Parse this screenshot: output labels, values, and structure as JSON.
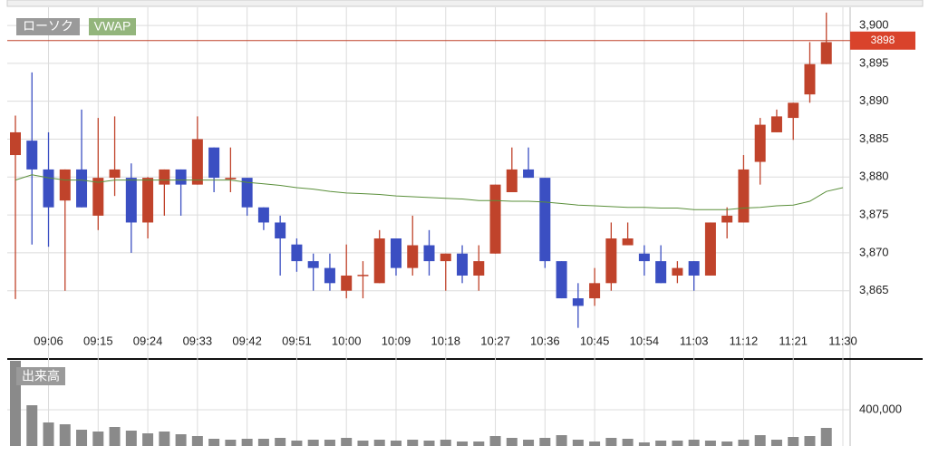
{
  "chart_data": [
    {
      "type": "candlestick",
      "legend_label": "ローソク",
      "up_color": "#c0432b",
      "down_color": "#3b4fc2",
      "categories": [
        null,
        null,
        "09:06",
        null,
        null,
        "09:15",
        null,
        null,
        "09:24",
        null,
        null,
        "09:33",
        null,
        null,
        "09:42",
        null,
        null,
        "09:51",
        null,
        null,
        "10:00",
        null,
        null,
        "10:09",
        null,
        null,
        "10:18",
        null,
        null,
        "10:27",
        null,
        null,
        "10:36",
        null,
        null,
        "10:45",
        null,
        null,
        "10:54",
        null,
        null,
        "11:03",
        null,
        null,
        "11:12",
        null,
        null,
        "11:21",
        null,
        null,
        "11:30"
      ],
      "open": [
        3882.9,
        3884.8,
        3881.0,
        3876.9,
        3881.0,
        3874.9,
        3879.9,
        3879.9,
        3874.0,
        3879.0,
        3881.0,
        3879.0,
        3883.9,
        3879.7,
        3879.9,
        3876.0,
        3874.0,
        3871.1,
        3868.9,
        3868.0,
        3865.0,
        3867.0,
        3866.0,
        3871.9,
        3868.0,
        3871.0,
        3868.9,
        3869.9,
        3867.0,
        3869.9,
        3878.0,
        3881.0,
        3879.9,
        3868.9,
        3864.0,
        3864.0,
        3866.0,
        3871.0,
        3869.9,
        3868.9,
        3867.0,
        3868.9,
        3867.0,
        3874.0,
        3874.0,
        3882.0,
        3885.9,
        3887.8,
        3890.9,
        3894.9,
        null
      ],
      "high": [
        3888.1,
        3893.8,
        3885.9,
        3881.0,
        3888.9,
        3887.8,
        3888.0,
        3881.8,
        3880.0,
        3881.0,
        3881.0,
        3888.0,
        3883.9,
        3883.9,
        3879.9,
        3876.0,
        3874.9,
        3871.9,
        3869.9,
        3869.9,
        3871.1,
        3868.9,
        3873.0,
        3871.9,
        3874.9,
        3873.0,
        3869.9,
        3871.0,
        3871.0,
        3879.0,
        3883.9,
        3883.9,
        3879.9,
        3868.9,
        3866.0,
        3868.0,
        3874.0,
        3874.0,
        3871.0,
        3871.0,
        3868.9,
        3868.9,
        3874.0,
        3876.0,
        3882.9,
        3887.8,
        3888.9,
        3889.8,
        3897.8,
        3901.7,
        null
      ],
      "low": [
        3863.9,
        3871.1,
        3870.8,
        3865.0,
        3876.0,
        3873.0,
        3877.5,
        3870.0,
        3871.9,
        3874.9,
        3874.9,
        3879.0,
        3878.0,
        3878.0,
        3874.9,
        3873.0,
        3867.0,
        3867.5,
        3865.0,
        3865.0,
        3864.0,
        3864.0,
        3866.0,
        3867.0,
        3867.0,
        3867.0,
        3865.0,
        3866.0,
        3865.0,
        3869.9,
        3878.0,
        3879.9,
        3868.0,
        3864.0,
        3860.1,
        3863.0,
        3865.0,
        3871.0,
        3867.0,
        3866.0,
        3866.0,
        3865.0,
        3867.0,
        3871.9,
        3874.0,
        3879.0,
        3885.9,
        3884.9,
        3889.8,
        3894.9,
        null
      ],
      "close": [
        3885.9,
        3881.0,
        3876.0,
        3881.0,
        3876.0,
        3879.9,
        3881.0,
        3874.0,
        3879.9,
        3881.0,
        3879.0,
        3885.0,
        3879.9,
        3879.9,
        3876.0,
        3874.0,
        3871.9,
        3868.9,
        3868.0,
        3866.0,
        3867.0,
        3867.1,
        3871.9,
        3868.0,
        3871.0,
        3868.9,
        3869.9,
        3867.0,
        3868.9,
        3879.0,
        3881.0,
        3879.9,
        3868.9,
        3864.0,
        3863.0,
        3866.0,
        3871.9,
        3871.9,
        3868.9,
        3866.0,
        3868.0,
        3867.0,
        3874.0,
        3874.9,
        3881.0,
        3886.9,
        3888.0,
        3889.8,
        3894.9,
        3897.8,
        null
      ],
      "series": [
        {
          "name": "VWAP",
          "color": "#5a8f3a",
          "values": [
            3879.6,
            3880.3,
            3879.9,
            3879.6,
            3879.6,
            3879.3,
            3879.6,
            3879.6,
            3879.6,
            3879.6,
            3879.6,
            3879.6,
            3879.6,
            3879.6,
            3879.3,
            3879.1,
            3878.9,
            3878.6,
            3878.4,
            3878.1,
            3877.9,
            3877.8,
            3877.7,
            3877.5,
            3877.4,
            3877.3,
            3877.2,
            3877.1,
            3876.9,
            3876.9,
            3876.8,
            3876.8,
            3876.7,
            3876.5,
            3876.3,
            3876.2,
            3876.1,
            3876.0,
            3876.0,
            3875.9,
            3875.9,
            3875.7,
            3875.7,
            3875.7,
            3875.9,
            3876.0,
            3876.2,
            3876.3,
            3876.8,
            3878.1,
            3878.6
          ]
        }
      ],
      "last_price": 3898,
      "last_price_color": "#d9432b",
      "ylim": [
        3859.7,
        3902.4
      ],
      "yticks": [
        {
          "value": 3900,
          "label": "3,900"
        },
        {
          "value": 3895,
          "label": "3,895"
        },
        {
          "value": 3890,
          "label": "3,890"
        },
        {
          "value": 3885,
          "label": "3,885"
        },
        {
          "value": 3880,
          "label": "3,880"
        },
        {
          "value": 3875,
          "label": "3,875"
        },
        {
          "value": 3870,
          "label": "3,870"
        },
        {
          "value": 3865,
          "label": "3,865"
        }
      ],
      "grid": true
    },
    {
      "type": "bar",
      "title": "出来高",
      "color": "#8a8a8a",
      "values": [
        940000,
        450000,
        260000,
        240000,
        180000,
        160000,
        210000,
        170000,
        140000,
        160000,
        130000,
        110000,
        80000,
        70000,
        80000,
        80000,
        90000,
        60000,
        70000,
        70000,
        90000,
        60000,
        70000,
        60000,
        70000,
        60000,
        70000,
        50000,
        50000,
        110000,
        90000,
        70000,
        90000,
        120000,
        70000,
        50000,
        90000,
        80000,
        40000,
        60000,
        60000,
        70000,
        60000,
        50000,
        70000,
        120000,
        70000,
        100000,
        110000,
        200000,
        null
      ],
      "ylim": [
        0,
        940000
      ],
      "yticks": [
        {
          "value": 400000,
          "label": "400,000"
        }
      ],
      "grid": true
    }
  ]
}
